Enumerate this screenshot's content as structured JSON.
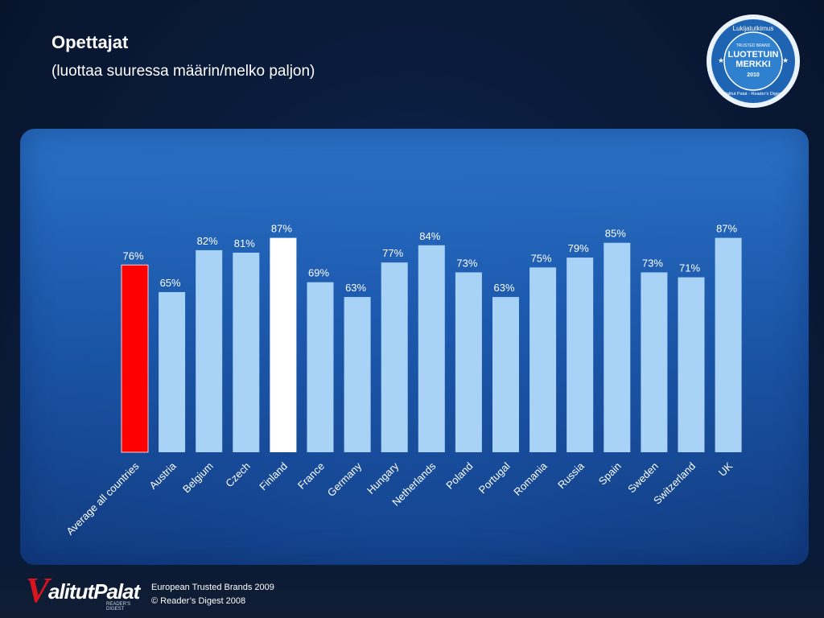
{
  "header": {
    "title": "Opettajat",
    "subtitle": "(luottaa suuressa määrin/melko paljon)"
  },
  "footer": {
    "logo_text": "alitutPalat",
    "logo_letter": "V",
    "logo_sub": "READER'S DIGEST",
    "line1": "European Trusted Brands 2009",
    "line2": "© Reader’s Digest 2008"
  },
  "badge": {
    "top_text": "Lukijatutkimus",
    "small_text": "TRUSTED BRAND",
    "main1": "LUOTETUIN",
    "main2": "MERKKI",
    "year": "2010",
    "bottom_text": "Valitut Palat - Reader's Digest"
  },
  "colors": {
    "bar_default": "#a9d2f7",
    "bar_average": "#ff0000",
    "bar_highlight": "#ffffff",
    "panel": "#2d78d2"
  },
  "chart_data": {
    "type": "bar",
    "categories": [
      "Average all countries",
      "Austria",
      "Belgium",
      "Czech",
      "Finland",
      "France",
      "Germany",
      "Hungary",
      "Netherlands",
      "Poland",
      "Portugal",
      "Romania",
      "Russia",
      "Spain",
      "Sweden",
      "Switzerland",
      "UK"
    ],
    "values": [
      76,
      65,
      82,
      81,
      87,
      69,
      63,
      77,
      84,
      73,
      63,
      75,
      79,
      85,
      73,
      71,
      87
    ],
    "labels": [
      "76%",
      "65%",
      "82%",
      "81%",
      "87%",
      "69%",
      "63%",
      "77%",
      "84%",
      "73%",
      "63%",
      "75%",
      "79%",
      "85%",
      "73%",
      "71%",
      "87%"
    ],
    "highlight": {
      "average": 0,
      "focus": 4
    },
    "ylim": [
      0,
      100
    ],
    "grid": false,
    "legend": "none"
  }
}
